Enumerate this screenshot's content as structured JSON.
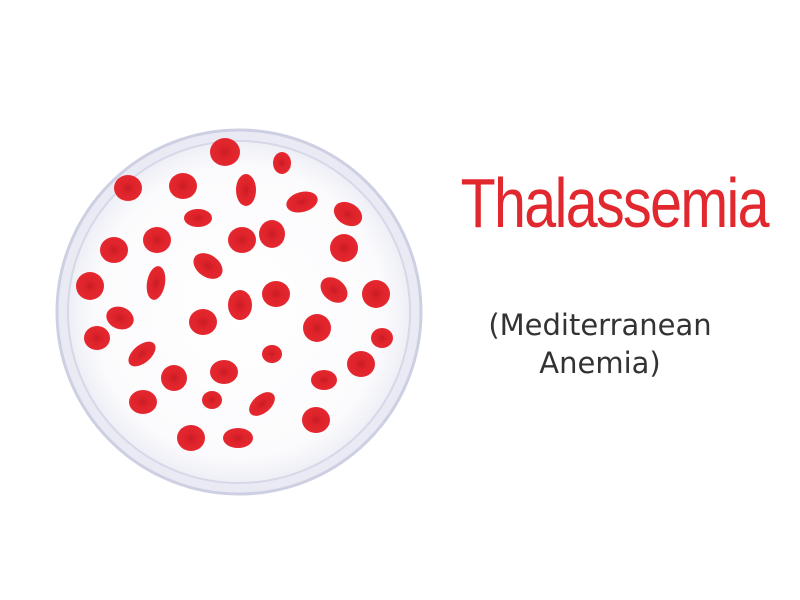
{
  "title": "Thalassemia",
  "subtitle": {
    "line1": "(Mediterranean",
    "line2": "Anemia)"
  },
  "colors": {
    "title": "#e2282f",
    "cell": "#e3242b",
    "cell_center": "#c81c24",
    "dish_rim": "#cdd0e3",
    "dish_inner": "#f6f6fa"
  },
  "illustration": {
    "subject": "petri-dish-red-blood-cells-icon"
  }
}
